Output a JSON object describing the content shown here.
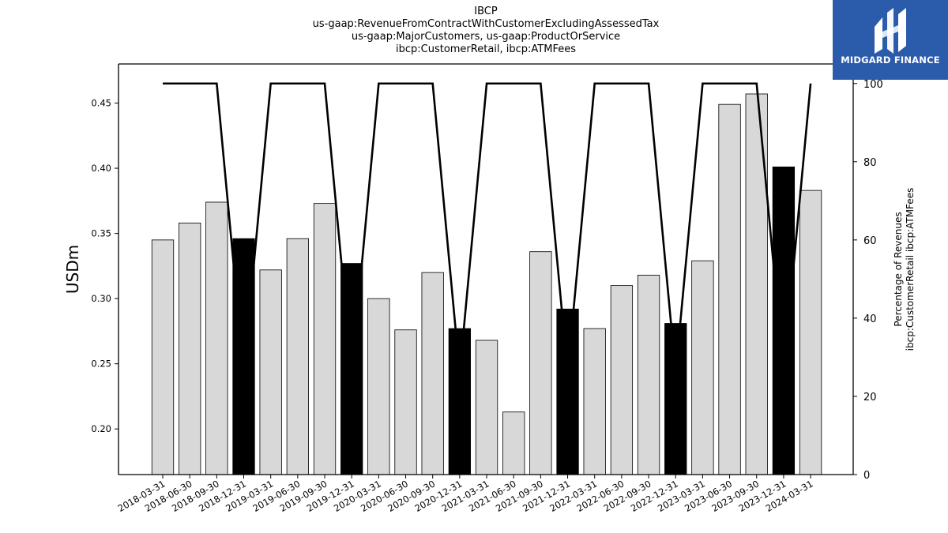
{
  "title_lines": [
    "IBCP",
    "us-gaap:RevenueFromContractWithCustomerExcludingAssessedTax",
    "us-gaap:MajorCustomers, us-gaap:ProductOrService",
    "ibcp:CustomerRetail, ibcp:ATMFees"
  ],
  "logo": {
    "text": "MIDGARD FINANCE",
    "background": "#2b5bab"
  },
  "chart_data": {
    "type": "bar",
    "title": "IBCP us-gaap:RevenueFromContractWithCustomerExcludingAssessedTax us-gaap:MajorCustomers, us-gaap:ProductOrService ibcp:CustomerRetail, ibcp:ATMFees",
    "categories": [
      "2018-03-31",
      "2018-06-30",
      "2018-09-30",
      "2018-12-31",
      "2019-03-31",
      "2019-06-30",
      "2019-09-30",
      "2019-12-31",
      "2020-03-31",
      "2020-06-30",
      "2020-09-30",
      "2020-12-31",
      "2021-03-31",
      "2021-06-30",
      "2021-09-30",
      "2021-12-31",
      "2022-03-31",
      "2022-06-30",
      "2022-09-30",
      "2022-12-31",
      "2023-03-31",
      "2023-06-30",
      "2023-09-30",
      "2023-12-31",
      "2024-03-31"
    ],
    "values": [
      0.345,
      0.358,
      0.374,
      0.346,
      0.322,
      0.346,
      0.373,
      0.327,
      0.3,
      0.276,
      0.32,
      0.277,
      0.268,
      0.213,
      0.336,
      0.292,
      0.277,
      0.31,
      0.318,
      0.281,
      0.329,
      0.449,
      0.457,
      0.401,
      0.383
    ],
    "highlight": [
      false,
      false,
      false,
      true,
      false,
      false,
      false,
      true,
      false,
      false,
      false,
      true,
      false,
      false,
      false,
      true,
      false,
      false,
      false,
      true,
      false,
      false,
      false,
      true,
      false
    ],
    "bar_color": "#d8d8d8",
    "highlight_color": "#000000",
    "ylabel": "USDm",
    "ylim": [
      0.165,
      0.48
    ],
    "yticks": [
      0.2,
      0.25,
      0.3,
      0.35,
      0.4,
      0.45
    ],
    "y2label_lines": [
      "Percentage of Revenues",
      "ibcp:CustomerRetail ibcp:ATMFees"
    ],
    "y2lim": [
      0,
      105
    ],
    "y2ticks": [
      0,
      20,
      40,
      60,
      80,
      100
    ],
    "line_series": {
      "values": [
        100,
        100,
        100,
        26,
        100,
        100,
        100,
        26,
        100,
        100,
        100,
        26,
        100,
        100,
        100,
        26,
        100,
        100,
        100,
        26,
        100,
        100,
        100,
        26,
        100
      ],
      "color": "#000000"
    },
    "grid": false
  }
}
